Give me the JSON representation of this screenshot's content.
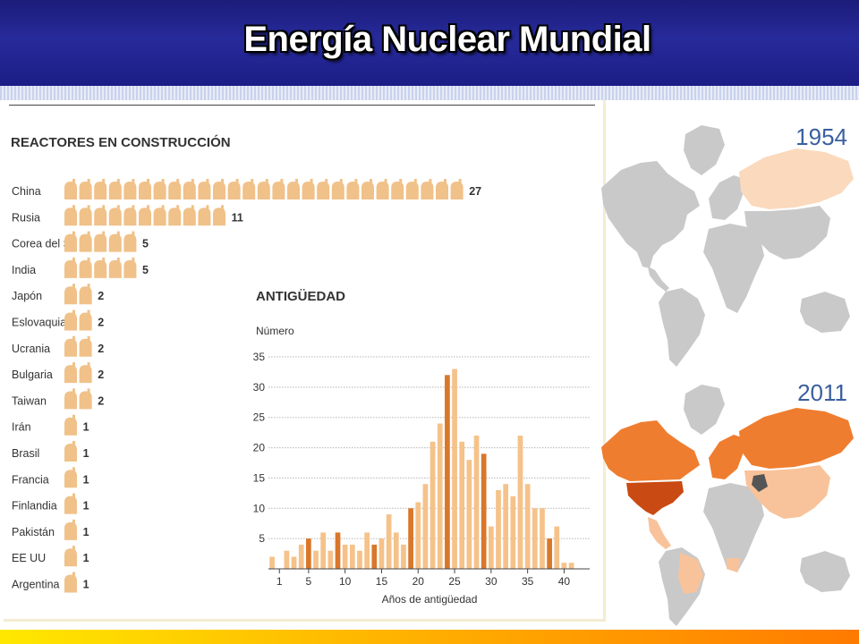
{
  "slide": {
    "title": "Energía Nuclear Mundial"
  },
  "colors": {
    "reactor_icon": "#f0c189",
    "bar_light": "#f5c28a",
    "bar_dark": "#d9772a",
    "map_gray": "#c9c9c9",
    "map_1954": "#fbd9bd",
    "map_2011_orange": "#ef7d2f",
    "map_2011_light": "#f8c39a",
    "map_2011_dark": "#c94a12"
  },
  "chart_data": [
    {
      "type": "bar",
      "title": "REACTORES EN CONSTRUCCIÓN",
      "orientation": "horizontal",
      "icon": "reactor-icon",
      "categories": [
        "China",
        "Rusia",
        "Corea del S.",
        "India",
        "Japón",
        "Eslovaquia",
        "Ucrania",
        "Bulgaria",
        "Taiwan",
        "Irán",
        "Brasil",
        "Francia",
        "Finlandia",
        "Pakistán",
        "EE UU",
        "Argentina"
      ],
      "values": [
        27,
        11,
        5,
        5,
        2,
        2,
        2,
        2,
        2,
        1,
        1,
        1,
        1,
        1,
        1,
        1
      ],
      "value_labels": [
        "27",
        "11",
        "5",
        "5",
        "2",
        "2",
        "2",
        "2",
        "2",
        "1",
        "1",
        "1",
        "1",
        "1",
        "1",
        "1"
      ]
    },
    {
      "type": "bar",
      "title": "ANTIGÜEDAD",
      "ylabel": "Número",
      "xlabel": "Años de antigüedad",
      "ylim": [
        0,
        35
      ],
      "yticks": [
        5,
        10,
        15,
        20,
        25,
        30,
        35
      ],
      "ytick_labels": [
        "5",
        "10",
        "15",
        "20",
        "25",
        "30",
        "35"
      ],
      "xticks": [
        1,
        5,
        10,
        15,
        20,
        25,
        30,
        35,
        40
      ],
      "xtick_labels": [
        "1",
        "5",
        "10",
        "15",
        "20",
        "25",
        "30",
        "35",
        "40"
      ],
      "grid": true,
      "x": [
        0,
        1,
        2,
        3,
        4,
        5,
        6,
        7,
        8,
        9,
        10,
        11,
        12,
        13,
        14,
        15,
        16,
        17,
        18,
        19,
        20,
        21,
        22,
        23,
        24,
        25,
        26,
        27,
        28,
        29,
        30,
        31,
        32,
        33,
        34,
        35,
        36,
        37,
        38,
        39,
        40,
        41,
        42,
        43
      ],
      "values": [
        2,
        0,
        3,
        2,
        4,
        5,
        3,
        6,
        3,
        6,
        4,
        4,
        3,
        6,
        4,
        5,
        9,
        6,
        4,
        10,
        11,
        14,
        21,
        24,
        32,
        33,
        21,
        18,
        22,
        19,
        7,
        13,
        14,
        12,
        22,
        14,
        10,
        10,
        5,
        7,
        1,
        1,
        0,
        0
      ],
      "highlight": [
        false,
        false,
        false,
        false,
        false,
        true,
        false,
        false,
        false,
        true,
        false,
        false,
        false,
        false,
        true,
        false,
        false,
        false,
        false,
        true,
        false,
        false,
        false,
        false,
        true,
        false,
        false,
        false,
        false,
        true,
        false,
        false,
        false,
        false,
        false,
        false,
        false,
        false,
        true,
        false,
        false,
        false,
        false,
        false
      ]
    }
  ],
  "maps": [
    {
      "year_label": "1954"
    },
    {
      "year_label": "2011"
    }
  ]
}
